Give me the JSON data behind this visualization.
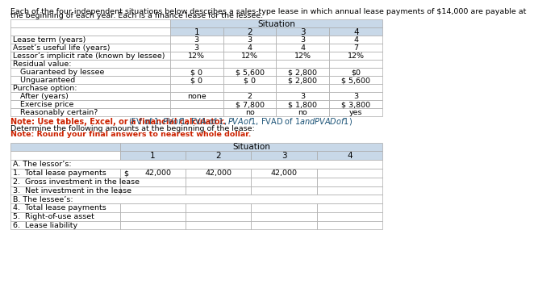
{
  "header_line1": "Each of the four independent situations below describes a sales-type lease in which annual lease payments of $14,000 are payable at",
  "header_line2": "the beginning of each year. Each is a finance lease for the lessee.",
  "note_bold": "Note: Use tables, Excel, or a financial calculator.",
  "note_links": " (FV of $1, PV of $1, FVA of $1, PVA of $1, FVAD of $1 and PVAD of $1)",
  "determine_text": "Determine the following amounts at the beginning of the lease:",
  "round_text": "Note: Round your final answers to nearest whole dollar.",
  "top_table": {
    "rows": [
      [
        "Lease term (years)",
        "3",
        "3",
        "3",
        "4"
      ],
      [
        "Asset’s useful life (years)",
        "3",
        "4",
        "4",
        "7"
      ],
      [
        "Lessor’s implicit rate (known by lessee)",
        "12%",
        "12%",
        "12%",
        "12%"
      ],
      [
        "Residual value:",
        "",
        "",
        "",
        ""
      ],
      [
        "   Guaranteed by lessee",
        "$ 0",
        "$ 5,600",
        "$ 2,800",
        "$0"
      ],
      [
        "   Unguaranteed",
        "$ 0",
        "$ 0",
        "$ 2,800",
        "$ 5,600"
      ],
      [
        "Purchase option:",
        "",
        "",
        "",
        ""
      ],
      [
        "   After (years)",
        "none",
        "2",
        "3",
        "3"
      ],
      [
        "   Exercise price",
        "",
        "$ 7,800",
        "$ 1,800",
        "$ 3,800"
      ],
      [
        "   Reasonably certain?",
        "",
        "no",
        "no",
        "yes"
      ]
    ]
  },
  "bottom_table": {
    "section_a_label": "A. The lessor’s:",
    "section_b_label": "B. The lessee’s:",
    "rows_a": [
      [
        "1.  Total lease payments",
        "$",
        "42,000",
        "42,000",
        "42,000",
        ""
      ],
      [
        "2.  Gross investment in the lease",
        "",
        "",
        "",
        "",
        ""
      ],
      [
        "3.  Net investment in the lease",
        "",
        "",
        "",
        "",
        ""
      ]
    ],
    "rows_b": [
      [
        "4.  Total lease payments",
        "",
        "",
        "",
        ""
      ],
      [
        "5.  Right-of-use asset",
        "",
        "",
        "",
        ""
      ],
      [
        "6.  Lease liability",
        "",
        "",
        "",
        ""
      ]
    ]
  },
  "header_bg": "#c8d8e8",
  "header_bg2": "#b8ccd8",
  "white": "#ffffff",
  "border_color": "#aaaaaa",
  "note_color": "#cc2200",
  "link_color": "#1a5276",
  "text_color": "#000000",
  "font_size_header": 6.8,
  "font_size_table": 6.8,
  "font_size_note": 7.0
}
